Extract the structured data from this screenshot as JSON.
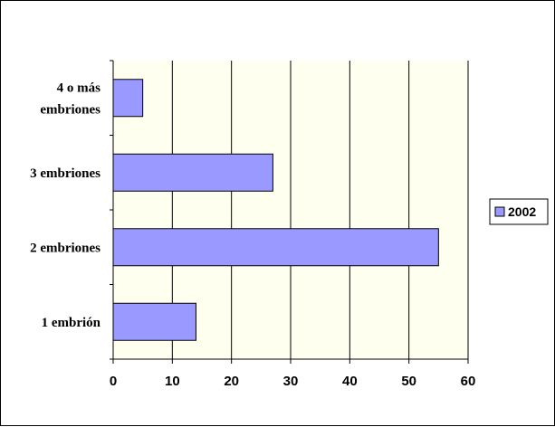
{
  "colors": {
    "plot_background": "#ffffef",
    "bar_fill": "#9999ff",
    "bar_stroke": "#000000",
    "gridline": "#000000"
  },
  "chart_data": {
    "type": "bar",
    "orientation": "horizontal",
    "categories": [
      "1 embrión",
      "2 embriones",
      "3 embriones",
      "4 o más embriones"
    ],
    "series": [
      {
        "name": "2002",
        "values": [
          14,
          55,
          27,
          5
        ]
      }
    ],
    "xlim": [
      0,
      60
    ],
    "xticks": [
      0,
      10,
      20,
      30,
      40,
      50,
      60
    ],
    "grid": "vertical",
    "legend": "right",
    "title": "",
    "xlabel": "",
    "ylabel": ""
  }
}
